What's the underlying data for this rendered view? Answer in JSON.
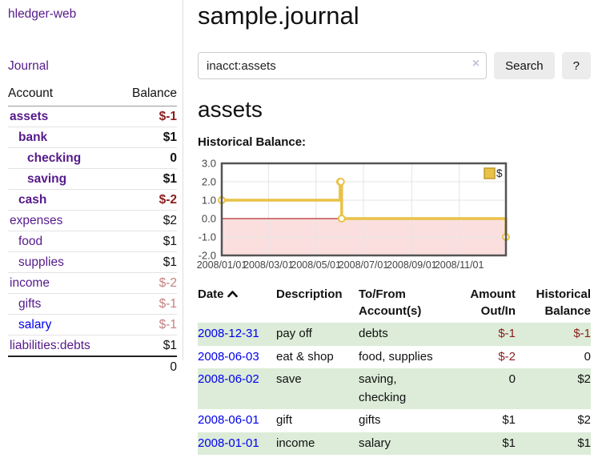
{
  "app": {
    "title": "hledger-web",
    "nav_journal": "Journal"
  },
  "sidebar": {
    "header": {
      "account": "Account",
      "balance": "Balance"
    },
    "accounts": [
      {
        "name": "assets",
        "indent": 1,
        "bold": true,
        "balance": "$-1",
        "neg": "strong"
      },
      {
        "name": "bank",
        "indent": 2,
        "bold": true,
        "balance": "$1"
      },
      {
        "name": "checking",
        "indent": 3,
        "bold": true,
        "balance": "0"
      },
      {
        "name": "saving",
        "indent": 3,
        "bold": true,
        "balance": "$1"
      },
      {
        "name": "cash",
        "indent": 2,
        "bold": true,
        "balance": "$-2",
        "neg": "strong"
      },
      {
        "name": "expenses",
        "indent": 1,
        "bold": false,
        "balance": "$2"
      },
      {
        "name": "food",
        "indent": 2,
        "bold": false,
        "balance": "$1"
      },
      {
        "name": "supplies",
        "indent": 2,
        "bold": false,
        "balance": "$1"
      },
      {
        "name": "income",
        "indent": 1,
        "bold": false,
        "balance": "$-2",
        "neg": "soft"
      },
      {
        "name": "gifts",
        "indent": 2,
        "bold": false,
        "balance": "$-1",
        "neg": "soft"
      },
      {
        "name": "salary",
        "indent": 2,
        "bold": false,
        "balance": "$-1",
        "neg": "soft",
        "link_color": "blue"
      },
      {
        "name": "liabilities:debts",
        "indent": 1,
        "bold": false,
        "balance": "$1"
      }
    ],
    "total": "0"
  },
  "header": {
    "title": "sample.journal"
  },
  "search": {
    "value": "inacct:assets",
    "clear_icon": "×",
    "button": "Search",
    "help_button": "?"
  },
  "account_page": {
    "title": "assets",
    "chart_label": "Historical Balance:"
  },
  "chart_data": {
    "type": "line",
    "style": "step",
    "title": "Historical Balance",
    "legend": "$",
    "legend_position": "top-right",
    "grid": true,
    "ylim": [
      -2,
      3
    ],
    "xlim": [
      "2008/01/01",
      "2008/12/31"
    ],
    "y_ticks": [
      3,
      2,
      1,
      0,
      -1,
      -2
    ],
    "x_ticks": [
      "2008/01/01",
      "2008/03/01",
      "2008/05/01",
      "2008/07/01",
      "2008/09/01",
      "2008/11/01"
    ],
    "series": [
      {
        "name": "$",
        "points": [
          {
            "date": "2008/01/01",
            "value": 1
          },
          {
            "date": "2008/06/01",
            "value": 2
          },
          {
            "date": "2008/06/02",
            "value": 2
          },
          {
            "date": "2008/06/03",
            "value": 0
          },
          {
            "date": "2008/12/31",
            "value": -1
          }
        ]
      }
    ],
    "colors": {
      "line": "#e9c247",
      "line_edge": "#bf9c2f",
      "marker_fill": "#ffffff",
      "negative_region": "#fbdfdf",
      "zero_line": "#a00000",
      "grid": "#e4e4e4",
      "border": "#545454",
      "label": "#444444"
    }
  },
  "register": {
    "columns": [
      {
        "line1": "Date",
        "line2": "",
        "align": "left",
        "sorted_asc": true
      },
      {
        "line1": "Description",
        "line2": "",
        "align": "left"
      },
      {
        "line1": "To/From",
        "line2": "Account(s)",
        "align": "left"
      },
      {
        "line1": "Amount",
        "line2": "Out/In",
        "align": "right"
      },
      {
        "line1": "Historical",
        "line2": "Balance",
        "align": "right"
      }
    ],
    "rows": [
      {
        "date": "2008-12-31",
        "description": "pay off",
        "accounts": "debts",
        "amount": "$-1",
        "amount_neg": true,
        "balance": "$-1",
        "balance_neg": true,
        "green": true
      },
      {
        "date": "2008-06-03",
        "description": "eat & shop",
        "accounts": "food, supplies",
        "amount": "$-2",
        "amount_neg": true,
        "balance": "0",
        "balance_neg": false,
        "green": false
      },
      {
        "date": "2008-06-02",
        "description": "save",
        "accounts": "saving, checking",
        "amount": "0",
        "amount_neg": false,
        "balance": "$2",
        "balance_neg": false,
        "green": true
      },
      {
        "date": "2008-06-01",
        "description": "gift",
        "accounts": "gifts",
        "amount": "$1",
        "amount_neg": false,
        "balance": "$2",
        "balance_neg": false,
        "green": false
      },
      {
        "date": "2008-01-01",
        "description": "income",
        "accounts": "salary",
        "amount": "$1",
        "amount_neg": false,
        "balance": "$1",
        "balance_neg": false,
        "green": true
      }
    ]
  }
}
